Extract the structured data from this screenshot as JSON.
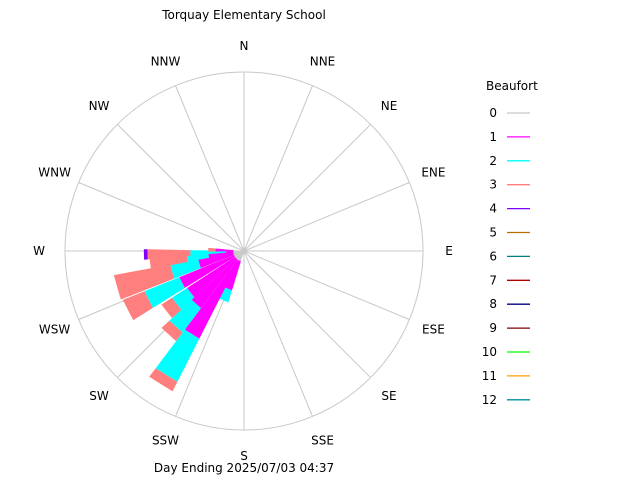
{
  "chart_data": {
    "type": "wind-rose",
    "title": "Torquay Elementary School",
    "subtitle": "Day Ending 2025/07/03 04:37",
    "legend_title": "Beaufort",
    "legend_position": "right",
    "directions": [
      "N",
      "NNE",
      "NE",
      "ENE",
      "E",
      "ESE",
      "SE",
      "SSE",
      "S",
      "SSW",
      "SW",
      "WSW",
      "W",
      "WNW",
      "NW",
      "NNW"
    ],
    "beaufort_scale": [
      {
        "level": "0",
        "color": "#c8c8c8"
      },
      {
        "level": "1",
        "color": "#ff00ff"
      },
      {
        "level": "2",
        "color": "#00ffff"
      },
      {
        "level": "3",
        "color": "#ff7f7f"
      },
      {
        "level": "4",
        "color": "#7f00ff"
      },
      {
        "level": "5",
        "color": "#b86e00"
      },
      {
        "level": "6",
        "color": "#008080"
      },
      {
        "level": "7",
        "color": "#b00000"
      },
      {
        "level": "8",
        "color": "#00007f"
      },
      {
        "level": "9",
        "color": "#7f0000"
      },
      {
        "level": "10",
        "color": "#00ff00"
      },
      {
        "level": "11",
        "color": "#ff9f00"
      },
      {
        "level": "12",
        "color": "#008f9f"
      }
    ],
    "radial_max": 1.0,
    "grid": true,
    "slices": [
      {
        "bearing": 180.0,
        "half_width": 3.0,
        "stack": [
          {
            "level": "0",
            "to": 0.06
          }
        ]
      },
      {
        "bearing": 202.5,
        "half_width": 5.5,
        "stack": [
          {
            "level": "0",
            "to": 0.06
          },
          {
            "level": "1",
            "to": 0.23
          },
          {
            "level": "2",
            "to": 0.3
          }
        ]
      },
      {
        "bearing": 212.0,
        "half_width": 5.0,
        "stack": [
          {
            "level": "0",
            "to": 0.06
          },
          {
            "level": "1",
            "to": 0.55
          },
          {
            "level": "2",
            "to": 0.82
          },
          {
            "level": "3",
            "to": 0.88
          }
        ]
      },
      {
        "bearing": 222.0,
        "half_width": 5.0,
        "stack": [
          {
            "level": "0",
            "to": 0.06
          },
          {
            "level": "1",
            "to": 0.4
          },
          {
            "level": "2",
            "to": 0.57
          },
          {
            "level": "3",
            "to": 0.63
          }
        ]
      },
      {
        "bearing": 232.0,
        "half_width": 5.0,
        "stack": [
          {
            "level": "0",
            "to": 0.06
          },
          {
            "level": "1",
            "to": 0.38
          },
          {
            "level": "2",
            "to": 0.48
          },
          {
            "level": "3",
            "to": 0.55
          }
        ]
      },
      {
        "bearing": 243.0,
        "half_width": 5.0,
        "stack": [
          {
            "level": "0",
            "to": 0.06
          },
          {
            "level": "1",
            "to": 0.39
          },
          {
            "level": "2",
            "to": 0.6
          },
          {
            "level": "3",
            "to": 0.73
          }
        ]
      },
      {
        "bearing": 254.0,
        "half_width": 5.5,
        "stack": [
          {
            "level": "0",
            "to": 0.06
          },
          {
            "level": "1",
            "to": 0.26
          },
          {
            "level": "2",
            "to": 0.42
          },
          {
            "level": "3",
            "to": 0.74
          }
        ]
      },
      {
        "bearing": 263.0,
        "half_width": 4.0,
        "stack": [
          {
            "level": "0",
            "to": 0.06
          },
          {
            "level": "1",
            "to": 0.2
          },
          {
            "level": "2",
            "to": 0.32
          },
          {
            "level": "3",
            "to": 0.53
          }
        ]
      },
      {
        "bearing": 268.0,
        "half_width": 3.0,
        "stack": [
          {
            "level": "0",
            "to": 0.06
          },
          {
            "level": "1",
            "to": 0.1
          },
          {
            "level": "2",
            "to": 0.3
          },
          {
            "level": "3",
            "to": 0.54
          },
          {
            "level": "4",
            "to": 0.56
          }
        ]
      },
      {
        "bearing": 272.0,
        "half_width": 3.0,
        "stack": [
          {
            "level": "0",
            "to": 0.06
          },
          {
            "level": "1",
            "to": 0.16
          },
          {
            "level": "3",
            "to": 0.2
          }
        ]
      }
    ]
  }
}
